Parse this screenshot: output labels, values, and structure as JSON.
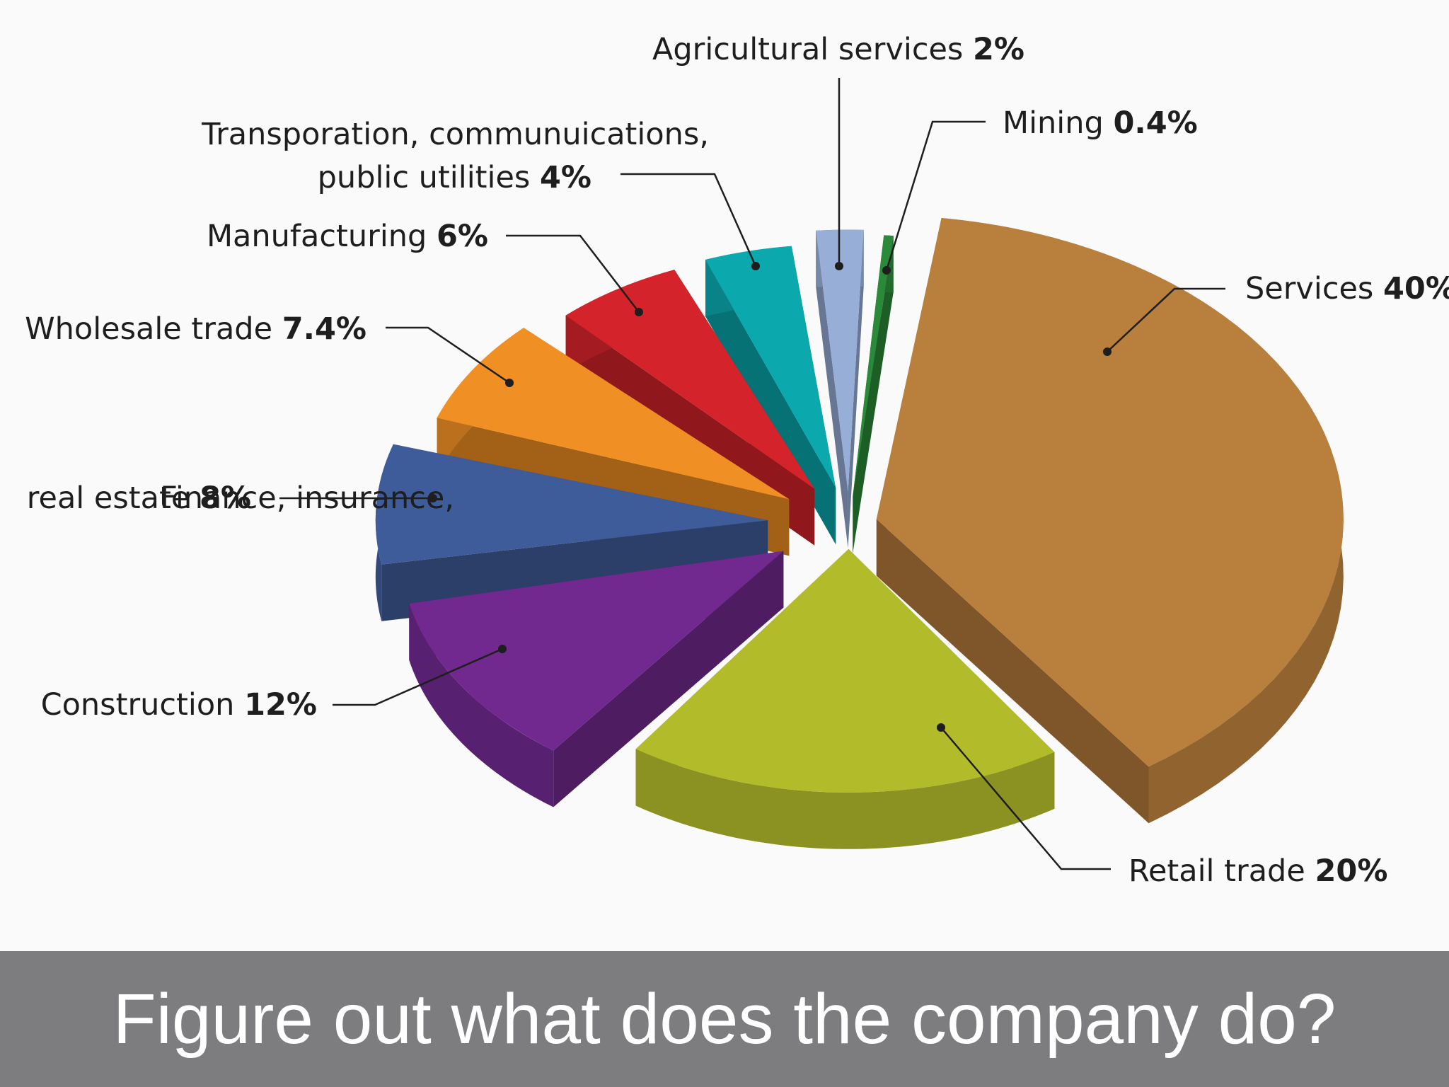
{
  "caption": "Figure out what does the company do?",
  "chart_data": {
    "type": "pie",
    "title": "",
    "slices": [
      {
        "label": "Services",
        "value": 40,
        "value_label": "40%",
        "color": "#b97f3c"
      },
      {
        "label": "Retail trade",
        "value": 20,
        "value_label": "20%",
        "color": "#b2bb2a"
      },
      {
        "label": "Construction",
        "value": 12,
        "value_label": "12%",
        "color": "#71298f"
      },
      {
        "label": "Finance, insurance,\nreal estate",
        "value": 8,
        "value_label": "8%",
        "color": "#3f5c9a"
      },
      {
        "label": "Wholesale trade",
        "value": 7.4,
        "value_label": "7.4%",
        "color": "#ef8f24"
      },
      {
        "label": "Manufacturing",
        "value": 6,
        "value_label": "6%",
        "color": "#d4232b"
      },
      {
        "label": "Transporation, communuications,\npublic utilities",
        "value": 4,
        "value_label": "4%",
        "color": "#0ba8ad"
      },
      {
        "label": "Agricultural services",
        "value": 2,
        "value_label": "2%",
        "color": "#97aed6"
      },
      {
        "label": "Mining",
        "value": 0.4,
        "value_label": "0.4%",
        "color": "#2a8a3a"
      }
    ]
  }
}
